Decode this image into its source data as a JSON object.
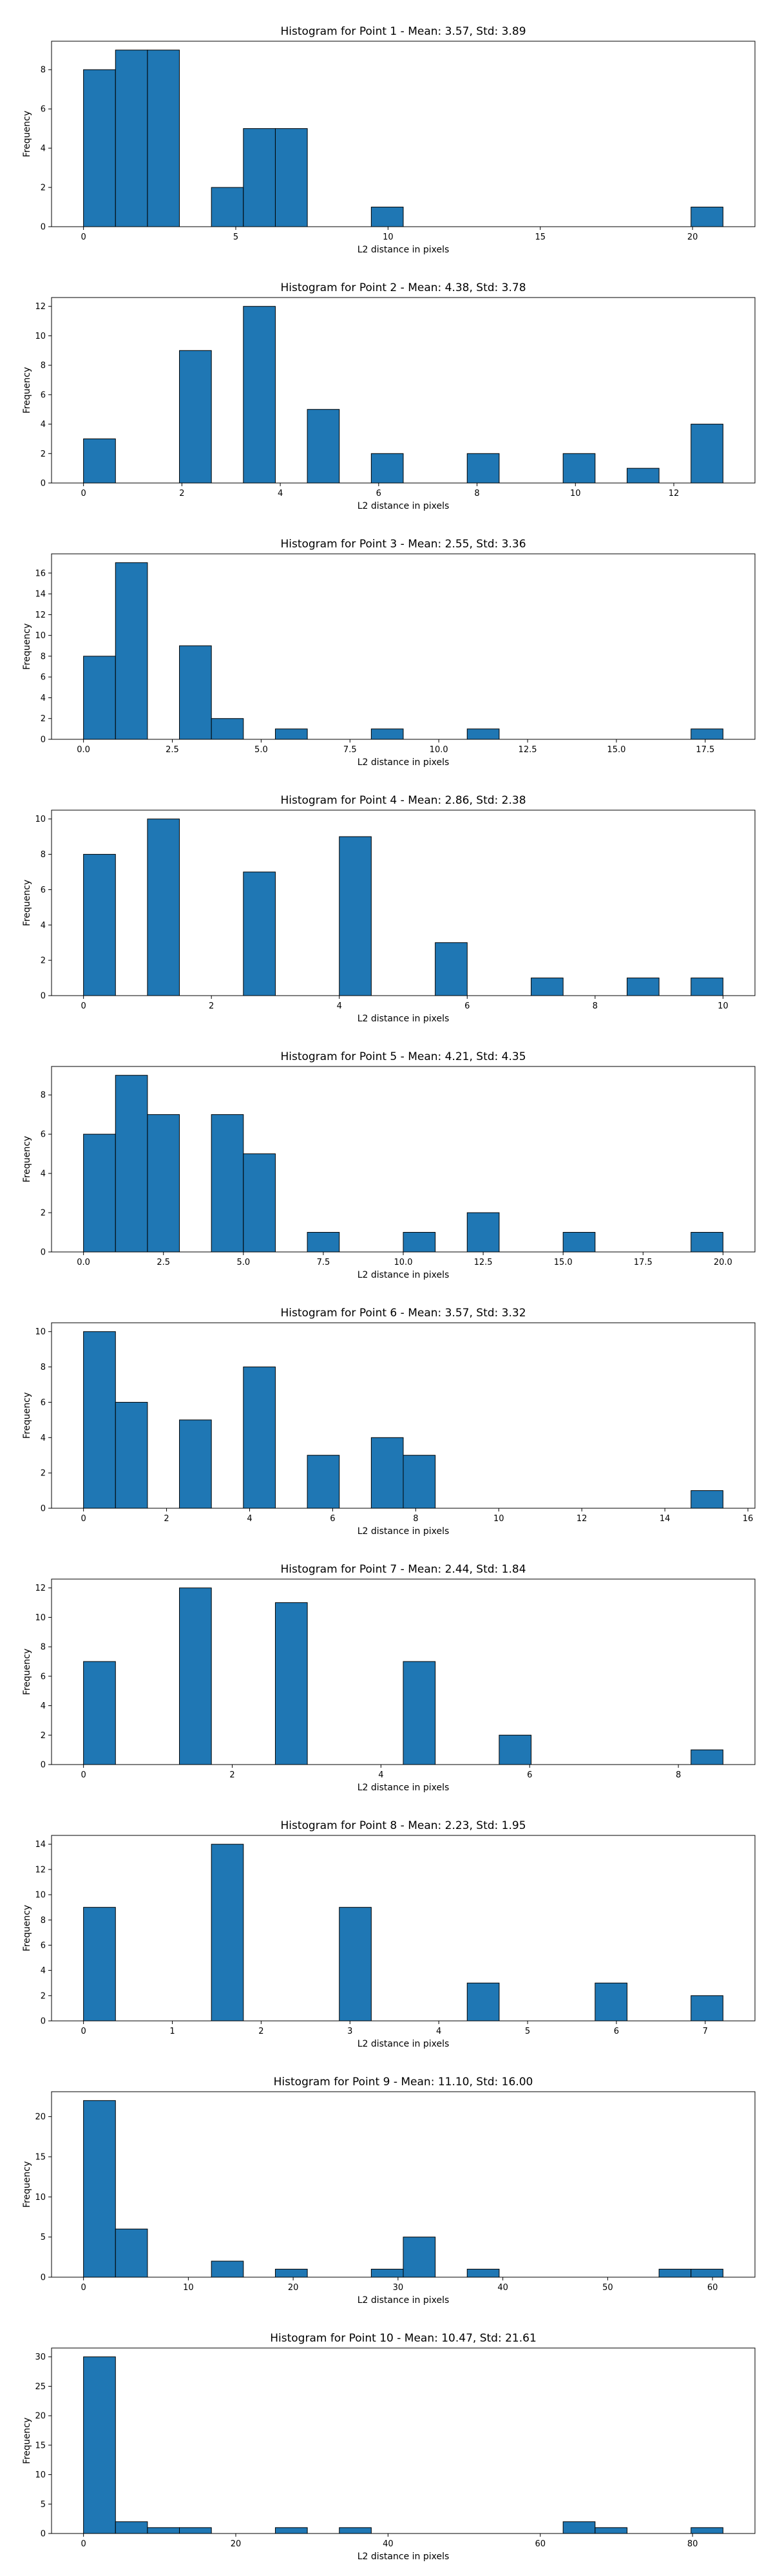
{
  "figure": {
    "bar_color": "#1f77b4",
    "edge_color": "#000000"
  },
  "chart_data": [
    {
      "type": "bar",
      "title": "Histogram for Point 1 - Mean: 3.57, Std: 3.89",
      "xlabel": "L2 distance in pixels",
      "ylabel": "Frequency",
      "xlim": [
        -1.05,
        22.05
      ],
      "ylim": [
        0,
        9.45
      ],
      "xticks": [
        0,
        5,
        10,
        15,
        20
      ],
      "xtick_labels": [
        "0",
        "5",
        "10",
        "15",
        "20"
      ],
      "yticks": [
        0,
        2,
        4,
        6,
        8
      ],
      "ytick_labels": [
        "0",
        "2",
        "4",
        "6",
        "8"
      ],
      "bin_edges": [
        0,
        1.05,
        2.1,
        3.15,
        4.2,
        5.25,
        6.3,
        7.35,
        8.4,
        9.45,
        10.5,
        11.55,
        12.6,
        13.65,
        14.7,
        15.75,
        16.8,
        17.85,
        18.9,
        19.95,
        21.0
      ],
      "counts": [
        8,
        9,
        9,
        0,
        2,
        5,
        5,
        0,
        0,
        1,
        0,
        0,
        0,
        0,
        0,
        0,
        0,
        0,
        0,
        1
      ]
    },
    {
      "type": "bar",
      "title": "Histogram for Point 2 - Mean: 4.38, Std: 3.78",
      "xlabel": "L2 distance in pixels",
      "ylabel": "Frequency",
      "xlim": [
        -0.65,
        13.65
      ],
      "ylim": [
        0,
        12.6
      ],
      "xticks": [
        0,
        2,
        4,
        6,
        8,
        10,
        12
      ],
      "xtick_labels": [
        "0",
        "2",
        "4",
        "6",
        "8",
        "10",
        "12"
      ],
      "yticks": [
        0,
        2,
        4,
        6,
        8,
        10,
        12
      ],
      "ytick_labels": [
        "0",
        "2",
        "4",
        "6",
        "8",
        "10",
        "12"
      ],
      "bin_edges": [
        0,
        0.65,
        1.3,
        1.95,
        2.6,
        3.25,
        3.9,
        4.55,
        5.2,
        5.85,
        6.5,
        7.15,
        7.8,
        8.45,
        9.1,
        9.75,
        10.4,
        11.05,
        11.7,
        12.35,
        13.0
      ],
      "counts": [
        3,
        0,
        0,
        9,
        0,
        12,
        0,
        5,
        0,
        2,
        0,
        0,
        2,
        0,
        0,
        2,
        0,
        1,
        0,
        4
      ]
    },
    {
      "type": "bar",
      "title": "Histogram for Point 3 - Mean: 2.55, Std: 3.36",
      "xlabel": "L2 distance in pixels",
      "ylabel": "Frequency",
      "xlim": [
        -0.9,
        18.9
      ],
      "ylim": [
        0,
        17.85
      ],
      "xticks": [
        0,
        2.5,
        5,
        7.5,
        10,
        12.5,
        15,
        17.5
      ],
      "xtick_labels": [
        "0.0",
        "2.5",
        "5.0",
        "7.5",
        "10.0",
        "12.5",
        "15.0",
        "17.5"
      ],
      "yticks": [
        0,
        2,
        4,
        6,
        8,
        10,
        12,
        14,
        16
      ],
      "ytick_labels": [
        "0",
        "2",
        "4",
        "6",
        "8",
        "10",
        "12",
        "14",
        "16"
      ],
      "bin_edges": [
        0,
        0.9,
        1.8,
        2.7,
        3.6,
        4.5,
        5.4,
        6.3,
        7.2,
        8.1,
        9.0,
        9.9,
        10.8,
        11.7,
        12.6,
        13.5,
        14.4,
        15.3,
        16.2,
        17.1,
        18.0
      ],
      "counts": [
        8,
        17,
        0,
        9,
        2,
        0,
        1,
        0,
        0,
        1,
        0,
        0,
        1,
        0,
        0,
        0,
        0,
        0,
        0,
        1
      ]
    },
    {
      "type": "bar",
      "title": "Histogram for Point 4 - Mean: 2.86, Std: 2.38",
      "xlabel": "L2 distance in pixels",
      "ylabel": "Frequency",
      "xlim": [
        -0.5,
        10.5
      ],
      "ylim": [
        0,
        10.5
      ],
      "xticks": [
        0,
        2,
        4,
        6,
        8,
        10
      ],
      "xtick_labels": [
        "0",
        "2",
        "4",
        "6",
        "8",
        "10"
      ],
      "yticks": [
        0,
        2,
        4,
        6,
        8,
        10
      ],
      "ytick_labels": [
        "0",
        "2",
        "4",
        "6",
        "8",
        "10"
      ],
      "bin_edges": [
        0,
        0.5,
        1.0,
        1.5,
        2.0,
        2.5,
        3.0,
        3.5,
        4.0,
        4.5,
        5.0,
        5.5,
        6.0,
        6.5,
        7.0,
        7.5,
        8.0,
        8.5,
        9.0,
        9.5,
        10.0
      ],
      "counts": [
        8,
        0,
        10,
        0,
        0,
        7,
        0,
        0,
        9,
        0,
        0,
        3,
        0,
        0,
        1,
        0,
        0,
        1,
        0,
        1
      ]
    },
    {
      "type": "bar",
      "title": "Histogram for Point 5 - Mean: 4.21, Std: 4.35",
      "xlabel": "L2 distance in pixels",
      "ylabel": "Frequency",
      "xlim": [
        -1.0,
        21.0
      ],
      "ylim": [
        0,
        9.45
      ],
      "xticks": [
        0,
        2.5,
        5,
        7.5,
        10,
        12.5,
        15,
        17.5,
        20
      ],
      "xtick_labels": [
        "0.0",
        "2.5",
        "5.0",
        "7.5",
        "10.0",
        "12.5",
        "15.0",
        "17.5",
        "20.0"
      ],
      "yticks": [
        0,
        2,
        4,
        6,
        8
      ],
      "ytick_labels": [
        "0",
        "2",
        "4",
        "6",
        "8"
      ],
      "bin_edges": [
        0,
        1,
        2,
        3,
        4,
        5,
        6,
        7,
        8,
        9,
        10,
        11,
        12,
        13,
        14,
        15,
        16,
        17,
        18,
        19,
        20
      ],
      "counts": [
        6,
        9,
        7,
        0,
        7,
        5,
        0,
        1,
        0,
        0,
        1,
        0,
        2,
        0,
        0,
        1,
        0,
        0,
        0,
        1
      ]
    },
    {
      "type": "bar",
      "title": "Histogram for Point 6 - Mean: 3.57, Std: 3.32",
      "xlabel": "L2 distance in pixels",
      "ylabel": "Frequency",
      "xlim": [
        -0.77,
        16.17
      ],
      "ylim": [
        0,
        10.5
      ],
      "xticks": [
        0,
        2,
        4,
        6,
        8,
        10,
        12,
        14,
        16
      ],
      "xtick_labels": [
        "0",
        "2",
        "4",
        "6",
        "8",
        "10",
        "12",
        "14",
        "16"
      ],
      "yticks": [
        0,
        2,
        4,
        6,
        8,
        10
      ],
      "ytick_labels": [
        "0",
        "2",
        "4",
        "6",
        "8",
        "10"
      ],
      "bin_edges": [
        0,
        0.77,
        1.54,
        2.31,
        3.08,
        3.85,
        4.62,
        5.39,
        6.16,
        6.93,
        7.7,
        8.47,
        9.24,
        10.01,
        10.78,
        11.55,
        12.32,
        13.09,
        13.86,
        14.63,
        15.4
      ],
      "counts": [
        10,
        6,
        0,
        5,
        0,
        8,
        0,
        3,
        0,
        4,
        3,
        0,
        0,
        0,
        0,
        0,
        0,
        0,
        0,
        1
      ]
    },
    {
      "type": "bar",
      "title": "Histogram for Point 7 - Mean: 2.44, Std: 1.84",
      "xlabel": "L2 distance in pixels",
      "ylabel": "Frequency",
      "xlim": [
        -0.43,
        9.03
      ],
      "ylim": [
        0,
        12.6
      ],
      "xticks": [
        0,
        2,
        4,
        6,
        8
      ],
      "xtick_labels": [
        "0",
        "2",
        "4",
        "6",
        "8"
      ],
      "yticks": [
        0,
        2,
        4,
        6,
        8,
        10,
        12
      ],
      "ytick_labels": [
        "0",
        "2",
        "4",
        "6",
        "8",
        "10",
        "12"
      ],
      "bin_edges": [
        0,
        0.43,
        0.86,
        1.29,
        1.72,
        2.15,
        2.58,
        3.01,
        3.44,
        3.87,
        4.3,
        4.73,
        5.16,
        5.59,
        6.02,
        6.45,
        6.88,
        7.31,
        7.74,
        8.17,
        8.6
      ],
      "counts": [
        7,
        0,
        0,
        12,
        0,
        0,
        11,
        0,
        0,
        0,
        7,
        0,
        0,
        2,
        0,
        0,
        0,
        0,
        0,
        1
      ]
    },
    {
      "type": "bar",
      "title": "Histogram for Point 8 - Mean: 2.23, Std: 1.95",
      "xlabel": "L2 distance in pixels",
      "ylabel": "Frequency",
      "xlim": [
        -0.36,
        7.56
      ],
      "ylim": [
        0,
        14.7
      ],
      "xticks": [
        0,
        1,
        2,
        3,
        4,
        5,
        6,
        7
      ],
      "xtick_labels": [
        "0",
        "1",
        "2",
        "3",
        "4",
        "5",
        "6",
        "7"
      ],
      "yticks": [
        0,
        2,
        4,
        6,
        8,
        10,
        12,
        14
      ],
      "ytick_labels": [
        "0",
        "2",
        "4",
        "6",
        "8",
        "10",
        "12",
        "14"
      ],
      "bin_edges": [
        0,
        0.36,
        0.72,
        1.08,
        1.44,
        1.8,
        2.16,
        2.52,
        2.88,
        3.24,
        3.6,
        3.96,
        4.32,
        4.68,
        5.04,
        5.4,
        5.76,
        6.12,
        6.48,
        6.84,
        7.2
      ],
      "counts": [
        9,
        0,
        0,
        0,
        14,
        0,
        0,
        0,
        9,
        0,
        0,
        0,
        3,
        0,
        0,
        0,
        3,
        0,
        0,
        2
      ]
    },
    {
      "type": "bar",
      "title": "Histogram for Point 9 - Mean: 11.10, Std: 16.00",
      "xlabel": "L2 distance in pixels",
      "ylabel": "Frequency",
      "xlim": [
        -3.05,
        64.05
      ],
      "ylim": [
        0,
        23.1
      ],
      "xticks": [
        0,
        10,
        20,
        30,
        40,
        50,
        60
      ],
      "xtick_labels": [
        "0",
        "10",
        "20",
        "30",
        "40",
        "50",
        "60"
      ],
      "yticks": [
        0,
        5,
        10,
        15,
        20
      ],
      "ytick_labels": [
        "0",
        "5",
        "10",
        "15",
        "20"
      ],
      "bin_edges": [
        0,
        3.05,
        6.1,
        9.15,
        12.2,
        15.25,
        18.3,
        21.35,
        24.4,
        27.45,
        30.5,
        33.55,
        36.6,
        39.65,
        42.7,
        45.75,
        48.8,
        51.85,
        54.9,
        57.95,
        61.0
      ],
      "counts": [
        22,
        6,
        0,
        0,
        2,
        0,
        1,
        0,
        0,
        1,
        5,
        0,
        1,
        0,
        0,
        0,
        0,
        0,
        1,
        1
      ]
    },
    {
      "type": "bar",
      "title": "Histogram for Point 10 - Mean: 10.47, Std: 21.61",
      "xlabel": "L2 distance in pixels",
      "ylabel": "Frequency",
      "xlim": [
        -4.2,
        88.2
      ],
      "ylim": [
        0,
        31.5
      ],
      "xticks": [
        0,
        20,
        40,
        60,
        80
      ],
      "xtick_labels": [
        "0",
        "20",
        "40",
        "60",
        "80"
      ],
      "yticks": [
        0,
        5,
        10,
        15,
        20,
        25,
        30
      ],
      "ytick_labels": [
        "0",
        "5",
        "10",
        "15",
        "20",
        "25",
        "30"
      ],
      "bin_edges": [
        0,
        4.2,
        8.4,
        12.6,
        16.8,
        21.0,
        25.2,
        29.4,
        33.6,
        37.8,
        42.0,
        46.2,
        50.4,
        54.6,
        58.8,
        63.0,
        67.2,
        71.4,
        75.6,
        79.8,
        84.0
      ],
      "counts": [
        30,
        2,
        1,
        1,
        0,
        0,
        1,
        0,
        1,
        0,
        0,
        0,
        0,
        0,
        0,
        2,
        1,
        0,
        0,
        1
      ]
    }
  ]
}
